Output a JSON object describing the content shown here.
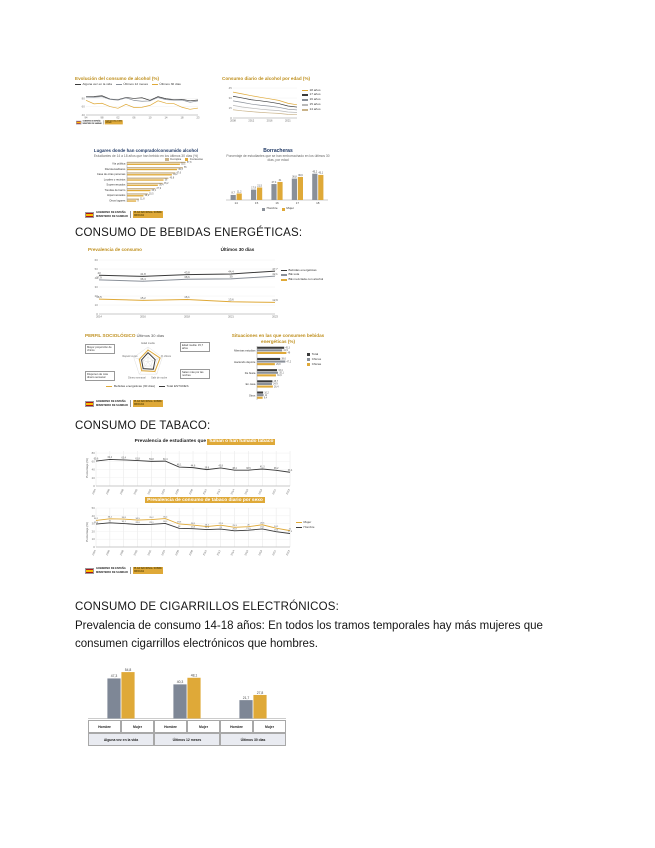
{
  "headings": {
    "energeticas": "CONSUMO DE BEBIDAS ENERGÉTICAS:",
    "tabaco": "CONSUMO DE TABACO:",
    "ecigarrillos": "CONSUMO DE CIGARRILLOS ELECTRÓNICOS:"
  },
  "paragraph_ecig": "Prevalencia de consumo 14-18 años: En todos los tramos temporales hay más mujeres que consumen cigarrillos electrónicos que hombres.",
  "logo": {
    "gobierno": "GOBIERNO DE ESPAÑA",
    "ministerio": "MINISTERIO DE SANIDAD",
    "badge": "PLAN NACIONAL SOBRE DROGAS"
  },
  "chart_data": {
    "alcohol_evolucion": {
      "type": "line",
      "title": "Evolución del consumo de alcohol (%)",
      "x": [
        "94",
        "96",
        "98",
        "00",
        "02",
        "04",
        "06",
        "08",
        "10",
        "12",
        "14",
        "16",
        "18",
        "21",
        "23"
      ],
      "xstep": 2,
      "ylim": [
        40,
        95
      ],
      "yticks": [
        40,
        60,
        80
      ],
      "lw": 0.7,
      "series": [
        {
          "name": "Alguna vez en la vida",
          "color": "#3A3A3A",
          "values": [
            84.1,
            84.2,
            86.0,
            78.0,
            76.6,
            82.0,
            79.6,
            81.2,
            75.1,
            83.9,
            78.9,
            76.9,
            77.5,
            73.9,
            75.9
          ]
        },
        {
          "name": "Últimos 12 meses",
          "color": "#8A9099",
          "values": [
            82.7,
            82.4,
            83.8,
            77.3,
            75.6,
            81.0,
            74.9,
            72.9,
            73.6,
            81.9,
            76.8,
            75.6,
            75.9,
            70.5,
            73.6
          ]
        },
        {
          "name": "Últimos 30 días",
          "color": "#DFA938",
          "values": [
            75.1,
            66.7,
            68.1,
            60.2,
            56.0,
            65.6,
            58.0,
            58.5,
            63.0,
            74.0,
            68.2,
            67.0,
            58.5,
            53.6,
            56.6
          ]
        }
      ]
    },
    "alcohol_tramos": {
      "type": "line",
      "title": "Consumo diario de alcohol por edad (%)",
      "x": [
        "2008",
        "2010",
        "2012",
        "2014",
        "2016",
        "2018",
        "2021",
        "2023"
      ],
      "xstep": 2,
      "ylim": [
        0,
        45
      ],
      "yticks": [
        0,
        15,
        30,
        45
      ],
      "lw": 0.7,
      "series": [
        {
          "name": "18 años",
          "color": "#DFA938",
          "values": [
            38.8,
            36.2,
            33.5,
            31.0,
            28.8,
            26.4,
            22.1,
            19.8
          ]
        },
        {
          "name": "17 años",
          "color": "#3A3A3A",
          "values": [
            32.6,
            30.1,
            27.4,
            25.8,
            23.9,
            21.7,
            18.0,
            16.4
          ]
        },
        {
          "name": "16 años",
          "color": "#8A9099",
          "values": [
            25.7,
            23.4,
            20.9,
            19.1,
            17.8,
            16.0,
            13.2,
            12.1
          ]
        },
        {
          "name": "15 años",
          "color": "#B9B9B9",
          "values": [
            18.9,
            16.5,
            14.8,
            13.2,
            12.0,
            11.1,
            9.0,
            8.2
          ]
        },
        {
          "name": "14 años",
          "color": "#C9B38A",
          "values": [
            12.4,
            10.8,
            9.6,
            8.4,
            7.6,
            6.9,
            5.4,
            5.0
          ]
        }
      ]
    },
    "alcohol_lugares": {
      "type": "hbar",
      "title": "Lugares donde han comprado/consumido alcohol",
      "subtitle": "Estudiantes de 14 a 18 años que han bebido en los últimos 30 días (%)",
      "labw": 42,
      "max": 65,
      "value_labels": true,
      "categories": [
        "Vía pública",
        "Discotecas/bares",
        "Casa de otras personas",
        "Locales o recintos",
        "Supermercados",
        "Tiendas de barrio",
        "Hipermercados",
        "Otros lugares"
      ],
      "series": [
        {
          "name": "Compra",
          "color": "#C9B38A"
        },
        {
          "name": "Consumo",
          "color": "#DFA938"
        }
      ],
      "values": [
        [
          57.8,
          52.1
        ],
        [
          55.0,
          49.3
        ],
        [
          47.6,
          44.2
        ],
        [
          40.8,
          36.0
        ],
        [
          35.2,
          30.4
        ],
        [
          27.9,
          23.1
        ],
        [
          20.5,
          16.2
        ],
        [
          11.8,
          9.0
        ]
      ]
    },
    "borracheras": {
      "type": "bar",
      "title": "Borracheras",
      "subtitle": "Porcentaje de estudiantes que se han emborrachado en los últimos 30 días, por edad",
      "ylim": [
        0,
        55
      ],
      "barw": 6,
      "vfs": 2.4,
      "categories": [
        "14",
        "15",
        "16",
        "17",
        "18"
      ],
      "series": [
        {
          "name": "Hombre",
          "color": "#8A9099",
          "values": [
            8.7,
            17.9,
            27.4,
            36.8,
            45.2
          ]
        },
        {
          "name": "Mujer",
          "color": "#DFA938",
          "values": [
            11.2,
            21.5,
            31.0,
            39.6,
            43.1
          ]
        }
      ]
    },
    "energeticas_prevalencia": {
      "type": "line",
      "title": "Prevalencia de consumo",
      "subtitle": "Últimos 30 días",
      "x": [
        "2014",
        "2016",
        "2018",
        "2021",
        "2023"
      ],
      "ylim": [
        0,
        60
      ],
      "yticks": [
        0,
        10,
        20,
        30,
        40,
        50,
        60
      ],
      "point_labels": true,
      "plfs": 2.8,
      "lw": 1,
      "series": [
        {
          "name": "Bebidas energéticas",
          "color": "#3A3A3A",
          "values": [
            43.0,
            41.8,
            43.8,
            44.4,
            47.7
          ]
        },
        {
          "name": "BE sola",
          "color": "#8A9099",
          "values": [
            37.9,
            36.4,
            38.6,
            39.0,
            42.1
          ]
        },
        {
          "name": "BE mezclada con alcohol",
          "color": "#DFA938",
          "values": [
            16.5,
            15.2,
            16.1,
            13.6,
            12.9
          ]
        }
      ]
    },
    "perfil": {
      "type": "radar",
      "title": "PERFIL SOCIOLÓGICO",
      "subtitle": "Últimos 30 días",
      "axes": [
        "Edad media",
        "% chicos",
        "Salir de noche",
        "Dinero semanal",
        "Repetir curso"
      ],
      "notes": [
        "Mayor proporción de chicos",
        "Edad media: 15,7 años",
        "Disponen de más dinero semanal",
        "Salen más por las noches"
      ],
      "series": [
        {
          "name": "Bebidas energéticas (30 días)",
          "color": "#DFA938",
          "values": [
            0.8,
            0.85,
            0.78,
            0.72,
            0.6
          ]
        },
        {
          "name": "Total ESTUDES",
          "color": "#3A3A3A",
          "values": [
            0.62,
            0.5,
            0.6,
            0.55,
            0.45
          ]
        }
      ]
    },
    "situaciones": {
      "type": "hbar",
      "title": "Situaciones en las que consumen bebidas energéticas (%)",
      "labw": 34,
      "max": 60,
      "value_labels": true,
      "categories": [
        "Mientras estudian",
        "Haciendo deporte",
        "De fiesta",
        "En casa",
        "Otros"
      ],
      "series": [
        {
          "name": "Total",
          "color": "#3A3A3A"
        },
        {
          "name": "Chicos",
          "color": "#8A9099"
        },
        {
          "name": "Chicas",
          "color": "#DFA938"
        }
      ],
      "values": [
        [
          45.3,
          41.9,
          49.0
        ],
        [
          38.6,
          47.2,
          29.8
        ],
        [
          33.4,
          35.1,
          31.6
        ],
        [
          25.7,
          24.9,
          26.4
        ],
        [
          10.2,
          11.0,
          9.4
        ]
      ]
    },
    "tabaco_evolucion": {
      "type": "line",
      "title_prefix": "Prevalencia de estudiantes que ",
      "title_highlight": "fuman o han fumado tabaco",
      "ylabel": "Porcentaje (%)",
      "x": [
        "1994",
        "1996",
        "1998",
        "2000",
        "2002",
        "2004",
        "2006",
        "2008",
        "2010",
        "2012",
        "2014",
        "2016",
        "2018",
        "2021",
        "2023"
      ],
      "ylim": [
        0,
        85
      ],
      "yticks": [
        0,
        20,
        40,
        60,
        80
      ],
      "vgrid": true,
      "rotx": true,
      "point_labels": true,
      "plfs": 2.3,
      "lw": 0.9,
      "mb": 10,
      "series": [
        {
          "name": "Alguna vez en la vida",
          "color": "#3A3A3A",
          "values": [
            60.6,
            64.4,
            63.4,
            61.8,
            59.8,
            60.4,
            46.1,
            44.6,
            39.8,
            43.8,
            38.4,
            38.5,
            41.3,
            38.2,
            33.4
          ]
        }
      ]
    },
    "tabaco_sexo": {
      "type": "line",
      "title": "Prevalencia de consumo de tabaco diario por sexo",
      "ylabel": "Porcentaje (%)",
      "x": [
        "1994",
        "1996",
        "1998",
        "2000",
        "2002",
        "2004",
        "2006",
        "2008",
        "2010",
        "2012",
        "2014",
        "2016",
        "2018",
        "2021",
        "2023"
      ],
      "ylim": [
        0,
        50
      ],
      "yticks": [
        0,
        10,
        20,
        30,
        40,
        50
      ],
      "vgrid": true,
      "rotx": true,
      "point_labels": true,
      "plfs": 2.2,
      "lw": 0.9,
      "mb": 10,
      "series": [
        {
          "name": "Mujer",
          "color": "#DFA938",
          "values": [
            34.1,
            36.2,
            35.8,
            34.5,
            35.2,
            36.4,
            29.5,
            28.1,
            26.2,
            27.9,
            25.3,
            26.0,
            28.5,
            24.1,
            21.0
          ]
        },
        {
          "name": "Hombre",
          "color": "#3A3A3A",
          "values": [
            29.4,
            31.0,
            30.1,
            28.8,
            29.1,
            30.2,
            24.0,
            23.5,
            22.4,
            23.0,
            20.8,
            21.5,
            23.1,
            19.6,
            17.3
          ]
        }
      ]
    },
    "ecig": {
      "type": "bar",
      "ylim": [
        0,
        62
      ],
      "ml": 0,
      "mr": 0,
      "mt": 8,
      "barw": 14,
      "vfs": 3.4,
      "xlabels": false,
      "categories": [
        "Alguna vez en la vida",
        "Últimos 12 meses",
        "Últimos 30 días"
      ],
      "sex_row": [
        "Hombre",
        "Mujer",
        "Hombre",
        "Mujer",
        "Hombre",
        "Mujer"
      ],
      "series": [
        {
          "name": "Hombres",
          "color": "#7E8796",
          "values": [
            47.3,
            40.3,
            21.7
          ]
        },
        {
          "name": "Mujer",
          "color": "#DFA938",
          "values": [
            54.8,
            48.1,
            27.8
          ]
        }
      ]
    }
  }
}
